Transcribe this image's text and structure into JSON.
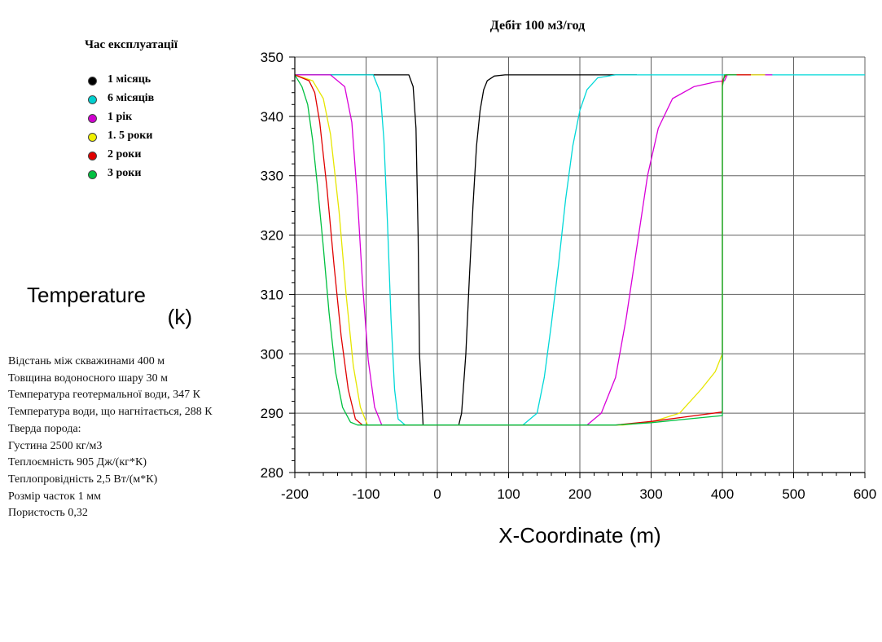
{
  "chart_data": {
    "type": "line",
    "title": "Дебіт 100 м3/год",
    "xlabel": "X-Coordinate (m)",
    "ylabel_line1": "Temperature",
    "ylabel_line2": "(k)",
    "xlim": [
      -200,
      600
    ],
    "ylim": [
      280,
      350
    ],
    "xticks": [
      -200,
      -100,
      0,
      100,
      200,
      300,
      400,
      500,
      600
    ],
    "yticks": [
      280,
      290,
      300,
      310,
      320,
      330,
      340,
      350
    ],
    "grid": true,
    "legend_title": "Час експлуатації",
    "legend_position": "top-left",
    "series": [
      {
        "name": "1 місяць",
        "color": "#000000",
        "x": [
          -200,
          -40,
          -34,
          -30,
          -27,
          -25,
          -20,
          30,
          34,
          40,
          45,
          50,
          55,
          60,
          65,
          70,
          80,
          95,
          120,
          280
        ],
        "y": [
          347,
          347,
          345,
          338,
          320,
          300,
          288,
          288,
          290,
          300,
          313,
          325,
          335,
          341,
          344.5,
          346,
          346.8,
          347,
          347,
          347
        ]
      },
      {
        "name": "6 місяців",
        "color": "#00d8d8",
        "x": [
          -200,
          -90,
          -80,
          -75,
          -70,
          -65,
          -60,
          -55,
          -45,
          120,
          140,
          150,
          160,
          170,
          180,
          190,
          200,
          210,
          225,
          250,
          600
        ],
        "y": [
          347,
          347,
          344,
          336,
          322,
          306,
          294,
          289,
          288,
          288,
          290,
          296,
          305,
          315,
          326,
          335,
          341,
          344.5,
          346.5,
          347,
          347
        ]
      },
      {
        "name": "1 рік",
        "color": "#d900d9",
        "x": [
          -200,
          -150,
          -130,
          -120,
          -112,
          -105,
          -97,
          -88,
          -78,
          210,
          230,
          250,
          265,
          280,
          295,
          310,
          330,
          360,
          390,
          403,
          407,
          470
        ],
        "y": [
          347,
          347,
          345,
          339,
          326,
          312,
          299,
          291,
          288,
          288,
          290,
          296,
          306,
          318,
          330,
          338,
          343,
          345,
          345.8,
          346,
          347,
          347
        ]
      },
      {
        "name": "1. 5 роки",
        "color": "#e6e600",
        "x": [
          -200,
          -175,
          -160,
          -150,
          -138,
          -128,
          -118,
          -108,
          -98,
          260,
          300,
          340,
          370,
          390,
          400,
          400,
          405,
          460
        ],
        "y": [
          347,
          346,
          343,
          337,
          324,
          310,
          298,
          291,
          288,
          288,
          288.5,
          290,
          294,
          297,
          300,
          346,
          347,
          347
        ]
      },
      {
        "name": "2 роки",
        "color": "#e00000",
        "x": [
          -200,
          -180,
          -172,
          -165,
          -155,
          -145,
          -135,
          -125,
          -115,
          -105,
          250,
          300,
          350,
          400,
          400,
          405,
          440
        ],
        "y": [
          347,
          346,
          344,
          339,
          328,
          315,
          303,
          294,
          289,
          288,
          288,
          288.6,
          289.4,
          290.2,
          346,
          347,
          347
        ]
      },
      {
        "name": "3 роки",
        "color": "#00c040",
        "x": [
          -200,
          -190,
          -182,
          -175,
          -168,
          -160,
          -152,
          -143,
          -133,
          -122,
          -112,
          250,
          300,
          350,
          400,
          400,
          403,
          420
        ],
        "y": [
          347,
          345,
          342,
          336,
          328,
          318,
          307,
          297,
          291,
          288.5,
          288,
          288,
          288.4,
          289,
          289.6,
          345,
          347,
          347
        ]
      }
    ]
  },
  "legend_items": [
    {
      "label": "1  місяць",
      "color": "#000000"
    },
    {
      "label": "6  місяців",
      "color": "#00d0d0"
    },
    {
      "label": "1  рік",
      "color": "#d000d0"
    },
    {
      "label": "1.  5 роки",
      "color": "#f0f000"
    },
    {
      "label": "2  роки",
      "color": "#e00000"
    },
    {
      "label": "3  роки",
      "color": "#00c040"
    }
  ],
  "params": [
    "Відстань між скважинами 400 м",
    "Товщина водоносного шару 30 м",
    "Температура геотермальної води, 347 К",
    "Температура води, що нагнітається, 288 К",
    "Тверда порода:",
    "Густина 2500 кг/м3",
    "Теплоємність 905 Дж/(кг*К)",
    "Теплопровідність 2,5 Вт/(м*К)",
    "Розмір часток 1 мм",
    "Пористость 0,32"
  ]
}
